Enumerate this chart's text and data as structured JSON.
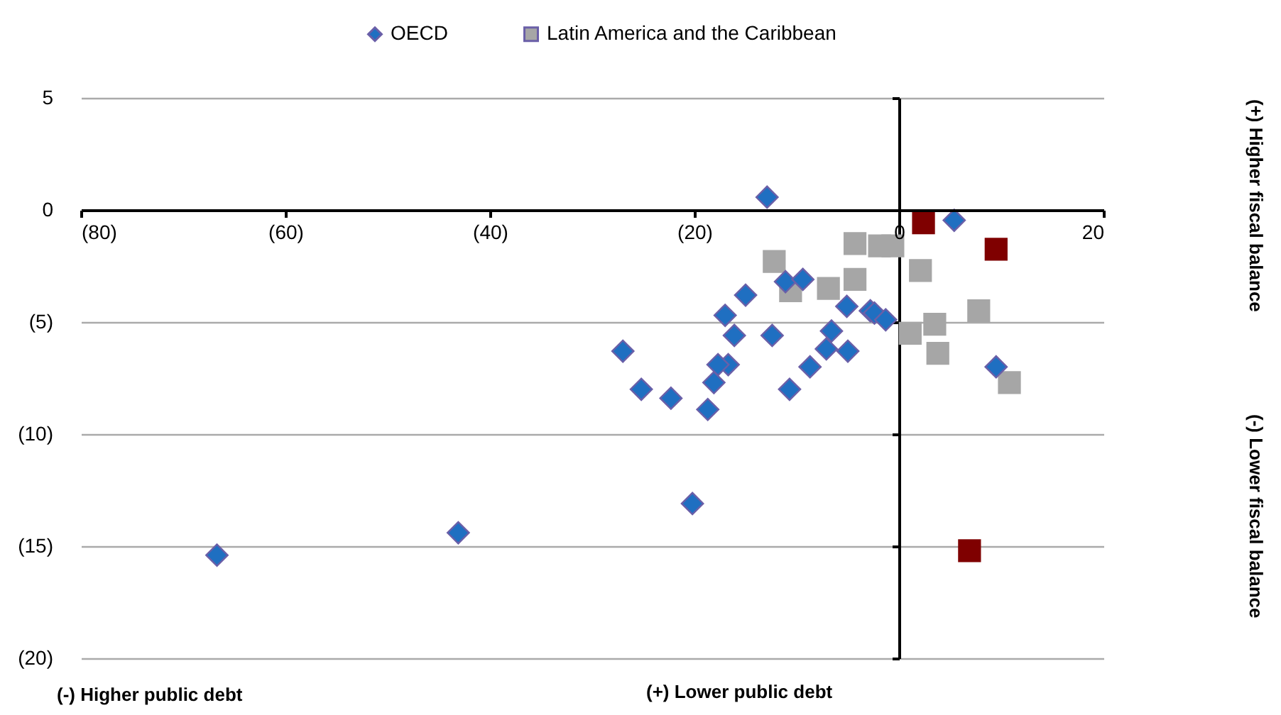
{
  "chart_data": {
    "type": "scatter",
    "series": [
      {
        "name": "OECD",
        "color": "#1f6fc1",
        "marker": "diamond",
        "x": [
          -12.9,
          5.4,
          -11.1,
          -9.4,
          -15.0,
          -17.0,
          -5.1,
          -2.8,
          -2.4,
          -1.3,
          -16.1,
          -12.4,
          -6.6,
          -27.0,
          -7.1,
          -5.0,
          9.5,
          -8.7,
          -16.7,
          -17.7,
          -18.1,
          -25.2,
          -22.3,
          -10.7,
          -18.7,
          -20.2,
          -66.7,
          -43.1
        ],
        "values": [
          0.57,
          -0.46,
          -3.2,
          -3.1,
          -3.8,
          -4.7,
          -4.3,
          -4.5,
          -4.6,
          -4.9,
          -5.6,
          -5.6,
          -5.4,
          -6.3,
          -6.2,
          -6.3,
          -7.0,
          -7.0,
          -6.9,
          -6.9,
          -7.7,
          -8.0,
          -8.4,
          -8.0,
          -8.9,
          -13.1,
          -15.4,
          -14.4
        ]
      },
      {
        "name": "Latin America and the Caribbean",
        "color": "#a6a6a6",
        "marker": "square",
        "x": [
          -12.2,
          -4.3,
          -1.9,
          -0.6,
          2.1,
          -10.6,
          -6.9,
          -4.3,
          7.8,
          3.5,
          1.1,
          3.8,
          10.8
        ],
        "values": [
          -2.3,
          -1.5,
          -1.6,
          -1.6,
          -2.7,
          -3.6,
          -3.5,
          -3.1,
          -4.5,
          -5.1,
          -5.5,
          -6.4,
          -7.7
        ]
      },
      {
        "color": "#7f0000",
        "marker": "square",
        "x": [
          2.4,
          9.5,
          6.9
        ],
        "values": [
          -0.57,
          -1.75,
          -15.2
        ]
      }
    ],
    "xlim": [
      -80,
      20
    ],
    "xticks": [
      {
        "value": -80,
        "label": "(80)"
      },
      {
        "value": -60,
        "label": "(60)"
      },
      {
        "value": -40,
        "label": "(40)"
      },
      {
        "value": -20,
        "label": "(20)"
      },
      0,
      20
    ],
    "ylim": [
      -20,
      5
    ],
    "yticks": [
      {
        "value": -20,
        "label": "(20)"
      },
      {
        "value": -15,
        "label": "(15)"
      },
      {
        "value": -10,
        "label": "(10)"
      },
      {
        "value": -5,
        "label": "(5)"
      },
      0,
      5
    ],
    "grid": "y",
    "legend": "top",
    "annotations": [
      "(-) Higher public debt",
      "(+) Lower public debt",
      "(+) Higher fiscal balance",
      "(-) Lower fiscal balance"
    ]
  }
}
